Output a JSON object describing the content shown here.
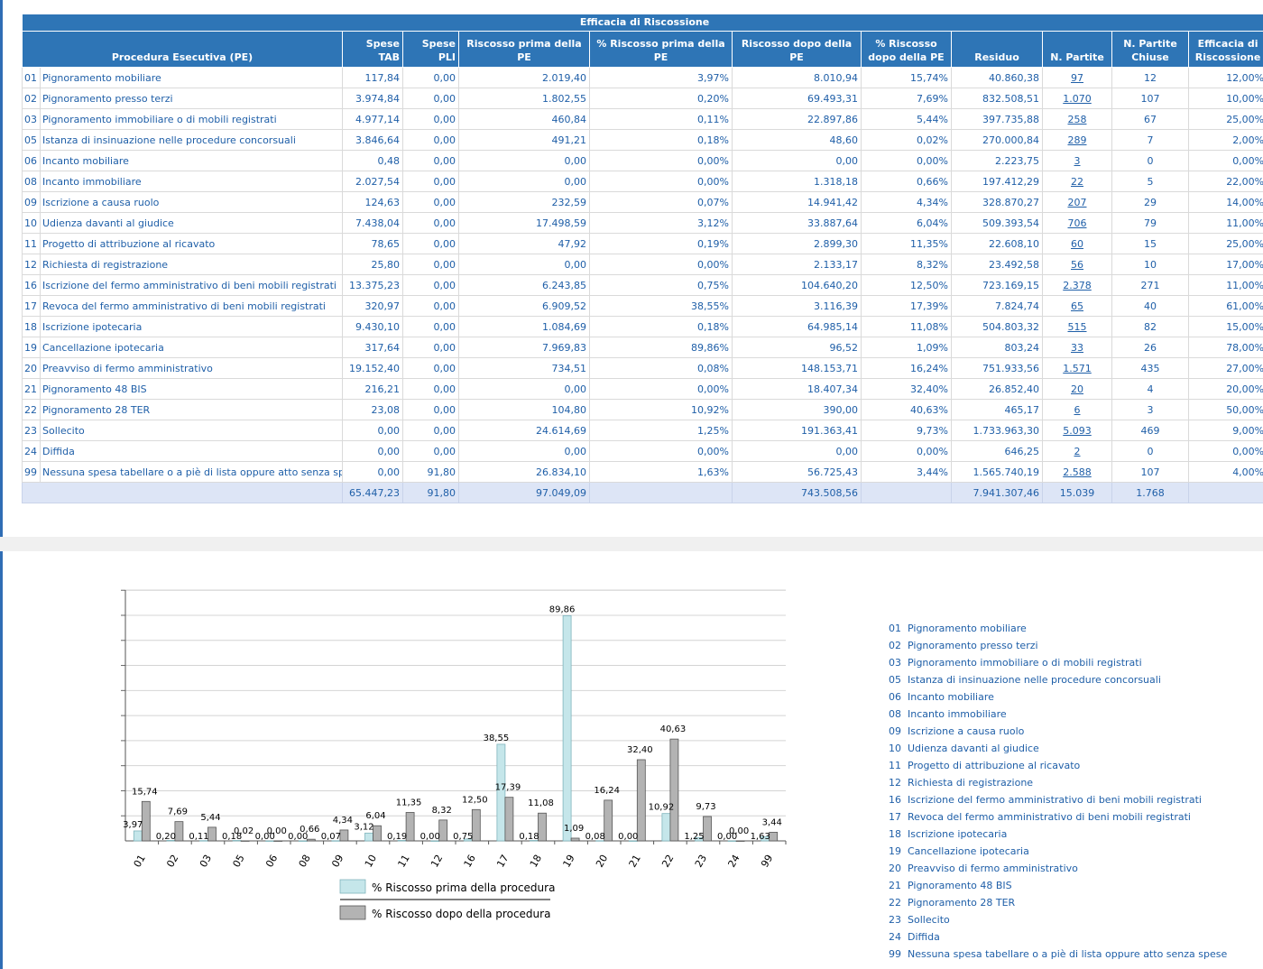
{
  "table": {
    "title": "Efficacia di Riscossione",
    "columns": [
      "Procedura Esecutiva (PE)",
      "Spese TAB",
      "Spese PLI",
      "Riscosso prima della PE",
      "% Riscosso prima della PE",
      "Riscosso dopo della PE",
      "% Riscosso dopo della PE",
      "Residuo",
      "N. Partite",
      "N. Partite Chiuse",
      "Efficacia di Riscossione"
    ],
    "rows": [
      {
        "code": "01",
        "name": "Pignoramento mobiliare",
        "spese_tab": "117,84",
        "spese_pli": "0,00",
        "prima": "2.019,40",
        "pct_prima": "3,97%",
        "dopo": "8.010,94",
        "pct_dopo": "15,74%",
        "residuo": "40.860,38",
        "partite": "97",
        "chiuse": "12",
        "efficacia": "12,00%"
      },
      {
        "code": "02",
        "name": "Pignoramento presso terzi",
        "spese_tab": "3.974,84",
        "spese_pli": "0,00",
        "prima": "1.802,55",
        "pct_prima": "0,20%",
        "dopo": "69.493,31",
        "pct_dopo": "7,69%",
        "residuo": "832.508,51",
        "partite": "1.070",
        "chiuse": "107",
        "efficacia": "10,00%"
      },
      {
        "code": "03",
        "name": "Pignoramento immobiliare o di mobili registrati",
        "spese_tab": "4.977,14",
        "spese_pli": "0,00",
        "prima": "460,84",
        "pct_prima": "0,11%",
        "dopo": "22.897,86",
        "pct_dopo": "5,44%",
        "residuo": "397.735,88",
        "partite": "258",
        "chiuse": "67",
        "efficacia": "25,00%"
      },
      {
        "code": "05",
        "name": "Istanza di insinuazione nelle procedure concorsuali",
        "spese_tab": "3.846,64",
        "spese_pli": "0,00",
        "prima": "491,21",
        "pct_prima": "0,18%",
        "dopo": "48,60",
        "pct_dopo": "0,02%",
        "residuo": "270.000,84",
        "partite": "289",
        "chiuse": "7",
        "efficacia": "2,00%"
      },
      {
        "code": "06",
        "name": "Incanto mobiliare",
        "spese_tab": "0,48",
        "spese_pli": "0,00",
        "prima": "0,00",
        "pct_prima": "0,00%",
        "dopo": "0,00",
        "pct_dopo": "0,00%",
        "residuo": "2.223,75",
        "partite": "3",
        "chiuse": "0",
        "efficacia": "0,00%"
      },
      {
        "code": "08",
        "name": "Incanto immobiliare",
        "spese_tab": "2.027,54",
        "spese_pli": "0,00",
        "prima": "0,00",
        "pct_prima": "0,00%",
        "dopo": "1.318,18",
        "pct_dopo": "0,66%",
        "residuo": "197.412,29",
        "partite": "22",
        "chiuse": "5",
        "efficacia": "22,00%"
      },
      {
        "code": "09",
        "name": "Iscrizione a causa ruolo",
        "spese_tab": "124,63",
        "spese_pli": "0,00",
        "prima": "232,59",
        "pct_prima": "0,07%",
        "dopo": "14.941,42",
        "pct_dopo": "4,34%",
        "residuo": "328.870,27",
        "partite": "207",
        "chiuse": "29",
        "efficacia": "14,00%"
      },
      {
        "code": "10",
        "name": "Udienza davanti al giudice",
        "spese_tab": "7.438,04",
        "spese_pli": "0,00",
        "prima": "17.498,59",
        "pct_prima": "3,12%",
        "dopo": "33.887,64",
        "pct_dopo": "6,04%",
        "residuo": "509.393,54",
        "partite": "706",
        "chiuse": "79",
        "efficacia": "11,00%"
      },
      {
        "code": "11",
        "name": "Progetto di attribuzione al ricavato",
        "spese_tab": "78,65",
        "spese_pli": "0,00",
        "prima": "47,92",
        "pct_prima": "0,19%",
        "dopo": "2.899,30",
        "pct_dopo": "11,35%",
        "residuo": "22.608,10",
        "partite": "60",
        "chiuse": "15",
        "efficacia": "25,00%"
      },
      {
        "code": "12",
        "name": "Richiesta di registrazione",
        "spese_tab": "25,80",
        "spese_pli": "0,00",
        "prima": "0,00",
        "pct_prima": "0,00%",
        "dopo": "2.133,17",
        "pct_dopo": "8,32%",
        "residuo": "23.492,58",
        "partite": "56",
        "chiuse": "10",
        "efficacia": "17,00%"
      },
      {
        "code": "16",
        "name": "Iscrizione del fermo amministrativo  di beni mobili registrati",
        "spese_tab": "13.375,23",
        "spese_pli": "0,00",
        "prima": "6.243,85",
        "pct_prima": "0,75%",
        "dopo": "104.640,20",
        "pct_dopo": "12,50%",
        "residuo": "723.169,15",
        "partite": "2.378",
        "chiuse": "271",
        "efficacia": "11,00%"
      },
      {
        "code": "17",
        "name": "Revoca del fermo amministrativo di beni mobili registrati",
        "spese_tab": "320,97",
        "spese_pli": "0,00",
        "prima": "6.909,52",
        "pct_prima": "38,55%",
        "dopo": "3.116,39",
        "pct_dopo": "17,39%",
        "residuo": "7.824,74",
        "partite": "65",
        "chiuse": "40",
        "efficacia": "61,00%"
      },
      {
        "code": "18",
        "name": "Iscrizione ipotecaria",
        "spese_tab": "9.430,10",
        "spese_pli": "0,00",
        "prima": "1.084,69",
        "pct_prima": "0,18%",
        "dopo": "64.985,14",
        "pct_dopo": "11,08%",
        "residuo": "504.803,32",
        "partite": "515",
        "chiuse": "82",
        "efficacia": "15,00%"
      },
      {
        "code": "19",
        "name": "Cancellazione ipotecaria",
        "spese_tab": "317,64",
        "spese_pli": "0,00",
        "prima": "7.969,83",
        "pct_prima": "89,86%",
        "dopo": "96,52",
        "pct_dopo": "1,09%",
        "residuo": "803,24",
        "partite": "33",
        "chiuse": "26",
        "efficacia": "78,00%"
      },
      {
        "code": "20",
        "name": "Preavviso di fermo amministrativo",
        "spese_tab": "19.152,40",
        "spese_pli": "0,00",
        "prima": "734,51",
        "pct_prima": "0,08%",
        "dopo": "148.153,71",
        "pct_dopo": "16,24%",
        "residuo": "751.933,56",
        "partite": "1.571",
        "chiuse": "435",
        "efficacia": "27,00%"
      },
      {
        "code": "21",
        "name": "Pignoramento 48 BIS",
        "spese_tab": "216,21",
        "spese_pli": "0,00",
        "prima": "0,00",
        "pct_prima": "0,00%",
        "dopo": "18.407,34",
        "pct_dopo": "32,40%",
        "residuo": "26.852,40",
        "partite": "20",
        "chiuse": "4",
        "efficacia": "20,00%"
      },
      {
        "code": "22",
        "name": "Pignoramento 28 TER",
        "spese_tab": "23,08",
        "spese_pli": "0,00",
        "prima": "104,80",
        "pct_prima": "10,92%",
        "dopo": "390,00",
        "pct_dopo": "40,63%",
        "residuo": "465,17",
        "partite": "6",
        "chiuse": "3",
        "efficacia": "50,00%"
      },
      {
        "code": "23",
        "name": "Sollecito",
        "spese_tab": "0,00",
        "spese_pli": "0,00",
        "prima": "24.614,69",
        "pct_prima": "1,25%",
        "dopo": "191.363,41",
        "pct_dopo": "9,73%",
        "residuo": "1.733.963,30",
        "partite": "5.093",
        "chiuse": "469",
        "efficacia": "9,00%"
      },
      {
        "code": "24",
        "name": "Diffida",
        "spese_tab": "0,00",
        "spese_pli": "0,00",
        "prima": "0,00",
        "pct_prima": "0,00%",
        "dopo": "0,00",
        "pct_dopo": "0,00%",
        "residuo": "646,25",
        "partite": "2",
        "chiuse": "0",
        "efficacia": "0,00%"
      },
      {
        "code": "99",
        "name": "Nessuna spesa tabellare o a piè di lista oppure atto senza spese",
        "spese_tab": "0,00",
        "spese_pli": "91,80",
        "prima": "26.834,10",
        "pct_prima": "1,63%",
        "dopo": "56.725,43",
        "pct_dopo": "3,44%",
        "residuo": "1.565.740,19",
        "partite": "2.588",
        "chiuse": "107",
        "efficacia": "4,00%"
      }
    ],
    "totals": {
      "spese_tab": "65.447,23",
      "spese_pli": "91,80",
      "prima": "97.049,09",
      "dopo": "743.508,56",
      "residuo": "7.941.307,46",
      "partite": "15.039",
      "chiuse": "1.768"
    }
  },
  "chart_data": {
    "type": "bar",
    "categories": [
      "01",
      "02",
      "03",
      "05",
      "06",
      "08",
      "09",
      "10",
      "11",
      "12",
      "16",
      "17",
      "18",
      "19",
      "20",
      "21",
      "22",
      "23",
      "24",
      "99"
    ],
    "series": [
      {
        "name": "% Riscosso prima della procedura",
        "color": "#c5e6ea",
        "stroke": "#7fb4bc",
        "values": [
          3.97,
          0.2,
          0.11,
          0.18,
          0.0,
          0.0,
          0.07,
          3.12,
          0.19,
          0.0,
          0.75,
          38.55,
          0.18,
          89.86,
          0.08,
          0.0,
          10.92,
          1.25,
          0.0,
          1.63
        ],
        "labels": [
          "3,97",
          "0,20",
          "0,11",
          "0,18",
          "0,00",
          "0,00",
          "0,07",
          "3,12",
          "0,19",
          "0,00",
          "0,75",
          "38,55",
          "0,18",
          "89,86",
          "0,08",
          "0,00",
          "10,92",
          "1,25",
          "0,00",
          "1,63"
        ]
      },
      {
        "name": "% Riscosso dopo della procedura",
        "color": "#b3b3b3",
        "stroke": "#555555",
        "values": [
          15.74,
          7.69,
          5.44,
          0.02,
          0.0,
          0.66,
          4.34,
          6.04,
          11.35,
          8.32,
          12.5,
          17.39,
          11.08,
          1.09,
          16.24,
          32.4,
          40.63,
          9.73,
          0.0,
          3.44
        ],
        "labels": [
          "15,74",
          "7,69",
          "5,44",
          "0,02",
          "0,00",
          "0,66",
          "4,34",
          "6,04",
          "11,35",
          "8,32",
          "12,50",
          "17,39",
          "11,08",
          "1,09",
          "16,24",
          "32,40",
          "40,63",
          "9,73",
          "0,00",
          "3,44"
        ]
      }
    ],
    "ylim": [
      0,
      100
    ],
    "grid": true,
    "legend_position": "bottom"
  },
  "pe_list": [
    {
      "code": "01",
      "name": "Pignoramento mobiliare"
    },
    {
      "code": "02",
      "name": "Pignoramento presso terzi"
    },
    {
      "code": "03",
      "name": "Pignoramento immobiliare o di mobili registrati"
    },
    {
      "code": "05",
      "name": "Istanza di insinuazione nelle procedure concorsuali"
    },
    {
      "code": "06",
      "name": "Incanto mobiliare"
    },
    {
      "code": "08",
      "name": "Incanto immobiliare"
    },
    {
      "code": "09",
      "name": "Iscrizione a causa ruolo"
    },
    {
      "code": "10",
      "name": "Udienza davanti al giudice"
    },
    {
      "code": "11",
      "name": "Progetto di attribuzione al ricavato"
    },
    {
      "code": "12",
      "name": "Richiesta di registrazione"
    },
    {
      "code": "16",
      "name": "Iscrizione del fermo amministrativo  di beni mobili registrati"
    },
    {
      "code": "17",
      "name": "Revoca del fermo amministrativo di beni mobili registrati"
    },
    {
      "code": "18",
      "name": "Iscrizione ipotecaria"
    },
    {
      "code": "19",
      "name": "Cancellazione ipotecaria"
    },
    {
      "code": "20",
      "name": "Preavviso di fermo amministrativo"
    },
    {
      "code": "21",
      "name": "Pignoramento 48 BIS"
    },
    {
      "code": "22",
      "name": "Pignoramento 28 TER"
    },
    {
      "code": "23",
      "name": "Sollecito"
    },
    {
      "code": "24",
      "name": "Diffida"
    },
    {
      "code": "99",
      "name": "Nessuna spesa tabellare o a piè di lista oppure atto senza spese"
    }
  ]
}
